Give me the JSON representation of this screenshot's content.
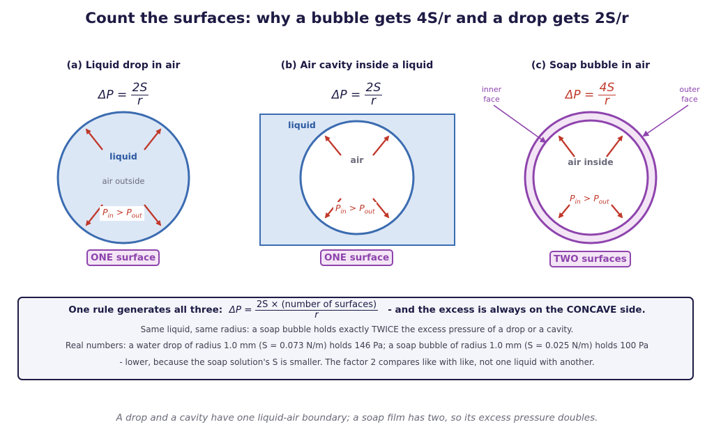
{
  "title": "Count the surfaces: why a bubble gets 4S/r and a drop gets 2S/r",
  "panels": [
    {
      "title": "(a) Liquid drop in air",
      "formula": {
        "lhs": "ΔP = ",
        "num": "2S",
        "den": "r"
      },
      "inner_label": "liquid",
      "outer_label": "air outside",
      "pressure": {
        "p": "P",
        "in": "in",
        "gt": " > ",
        "out": "out"
      },
      "badge": "ONE surface"
    },
    {
      "title": "(b) Air cavity inside a liquid",
      "formula": {
        "lhs": "ΔP = ",
        "num": "2S",
        "den": "r"
      },
      "outer_label": "liquid",
      "inner_label": "air",
      "pressure": {
        "p": "P",
        "in": "in",
        "gt": " > ",
        "out": "out"
      },
      "badge": "ONE surface"
    },
    {
      "title": "(c) Soap bubble in air",
      "formula": {
        "lhs": "ΔP = ",
        "num": "4S",
        "den": "r"
      },
      "inner_label": "air inside",
      "pressure": {
        "p": "P",
        "in": "in",
        "gt": " > ",
        "out": "out"
      },
      "inner_face": [
        "inner",
        "face"
      ],
      "outer_face": [
        "outer",
        "face"
      ],
      "badge": "TWO surfaces"
    }
  ],
  "rule_box": {
    "lead": "One rule generates all three:",
    "formula": {
      "lhs": "ΔP = ",
      "num": "2S × (number of surfaces)",
      "den": "r"
    },
    "tail": "-  and the excess is always on the CONCAVE side.",
    "line1": "Same liquid, same radius: a soap bubble holds exactly TWICE the excess pressure of a drop or a cavity.",
    "line2": "Real numbers: a water drop of radius 1.0 mm (S = 0.073 N/m) holds 146 Pa;  a soap bubble of radius 1.0 mm (S = 0.025 N/m) holds 100 Pa",
    "line3": "- lower, because the soap solution's S is smaller. The factor 2 compares like with like, not one liquid with another."
  },
  "footer": "A drop and a cavity have one liquid-air boundary; a soap film has two, so its excess pressure doubles.",
  "colors": {
    "blue_stroke": "#3b6cb0",
    "blue_fill": "#dce7f6",
    "arrow_red": "#c0392b",
    "purple": "#8e44ad",
    "purple_fill": "#f3e5f5"
  }
}
